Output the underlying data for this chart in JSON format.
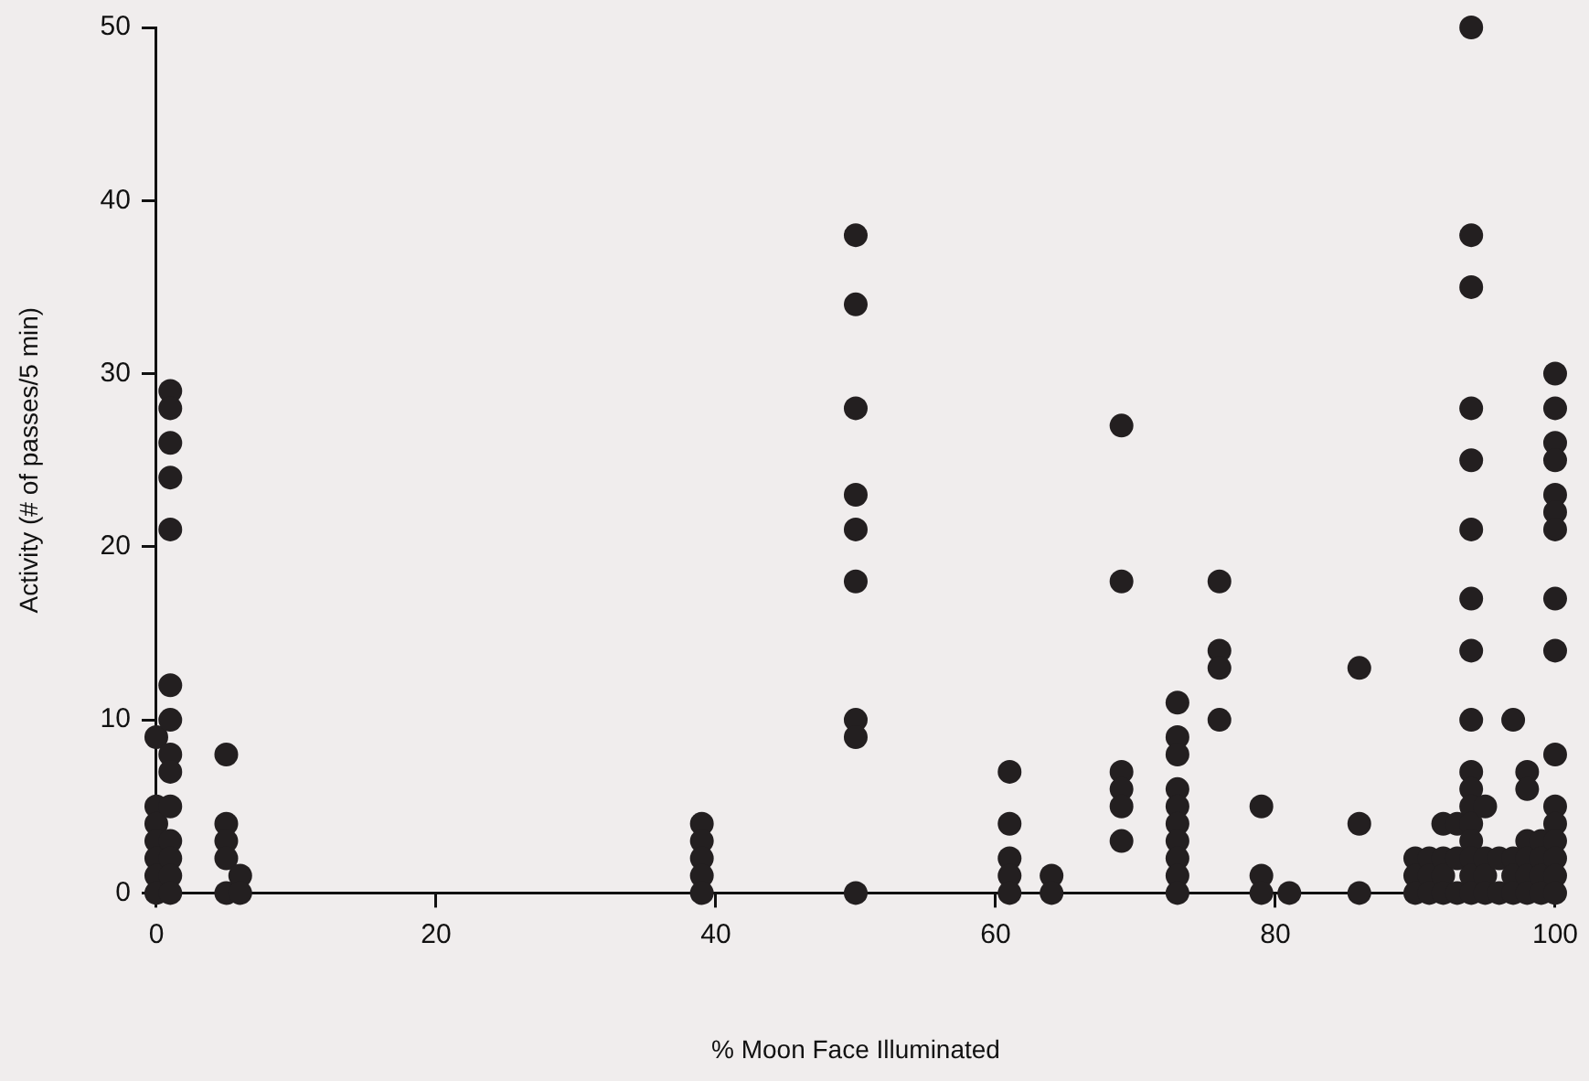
{
  "chart_data": {
    "type": "scatter",
    "xlabel": "% Moon Face Illuminated",
    "ylabel": "Activity (# of passes/5 min)",
    "x": [
      0,
      0,
      0,
      0,
      0,
      0,
      0,
      1,
      1,
      1,
      1,
      1,
      1,
      1,
      1,
      1,
      1,
      1,
      1,
      1,
      1,
      5,
      5,
      5,
      5,
      5,
      6,
      6,
      39,
      39,
      39,
      39,
      39,
      50,
      50,
      50,
      50,
      50,
      50,
      50,
      50,
      50,
      61,
      61,
      61,
      61,
      61,
      64,
      64,
      69,
      69,
      69,
      69,
      69,
      69,
      73,
      73,
      73,
      73,
      73,
      73,
      73,
      73,
      73,
      73,
      76,
      76,
      76,
      76,
      79,
      79,
      79,
      81,
      86,
      86,
      86,
      90,
      90,
      90,
      91,
      91,
      91,
      92,
      92,
      92,
      92,
      93,
      93,
      93,
      94,
      94,
      94,
      94,
      94,
      94,
      94,
      94,
      94,
      94,
      94,
      94,
      94,
      94,
      94,
      94,
      94,
      95,
      95,
      95,
      95,
      96,
      96,
      97,
      97,
      97,
      97,
      98,
      98,
      98,
      98,
      98,
      98,
      99,
      99,
      99,
      99,
      100,
      100,
      100,
      100,
      100,
      100,
      100,
      100,
      100,
      100,
      100,
      100,
      100,
      100,
      100,
      100
    ],
    "values": [
      9,
      5,
      4,
      3,
      2,
      1,
      0,
      29,
      28,
      26,
      24,
      21,
      12,
      10,
      8,
      7,
      5,
      3,
      2,
      1,
      0,
      8,
      4,
      3,
      2,
      0,
      1,
      0,
      4,
      3,
      2,
      1,
      0,
      38,
      34,
      28,
      23,
      21,
      18,
      10,
      9,
      0,
      7,
      4,
      2,
      1,
      0,
      1,
      0,
      27,
      18,
      7,
      6,
      5,
      3,
      11,
      9,
      8,
      6,
      5,
      4,
      3,
      2,
      1,
      0,
      18,
      14,
      13,
      10,
      5,
      1,
      0,
      0,
      13,
      4,
      0,
      2,
      1,
      0,
      2,
      1,
      0,
      4,
      2,
      1,
      0,
      4,
      2,
      0,
      50,
      38,
      35,
      28,
      25,
      21,
      17,
      14,
      10,
      7,
      6,
      5,
      4,
      3,
      2,
      1,
      0,
      5,
      2,
      1,
      0,
      2,
      0,
      10,
      2,
      1,
      0,
      7,
      6,
      3,
      2,
      1,
      0,
      3,
      2,
      1,
      0,
      30,
      28,
      26,
      25,
      23,
      22,
      21,
      17,
      14,
      8,
      5,
      4,
      3,
      2,
      1,
      0
    ],
    "color": "#231f20",
    "marker": "circle",
    "xlim": [
      0,
      100
    ],
    "xticks": [
      0,
      20,
      40,
      60,
      80,
      100
    ],
    "ylim": [
      0,
      50
    ],
    "yticks": [
      0,
      10,
      20,
      30,
      40,
      50
    ],
    "grid": false,
    "legend": false
  }
}
